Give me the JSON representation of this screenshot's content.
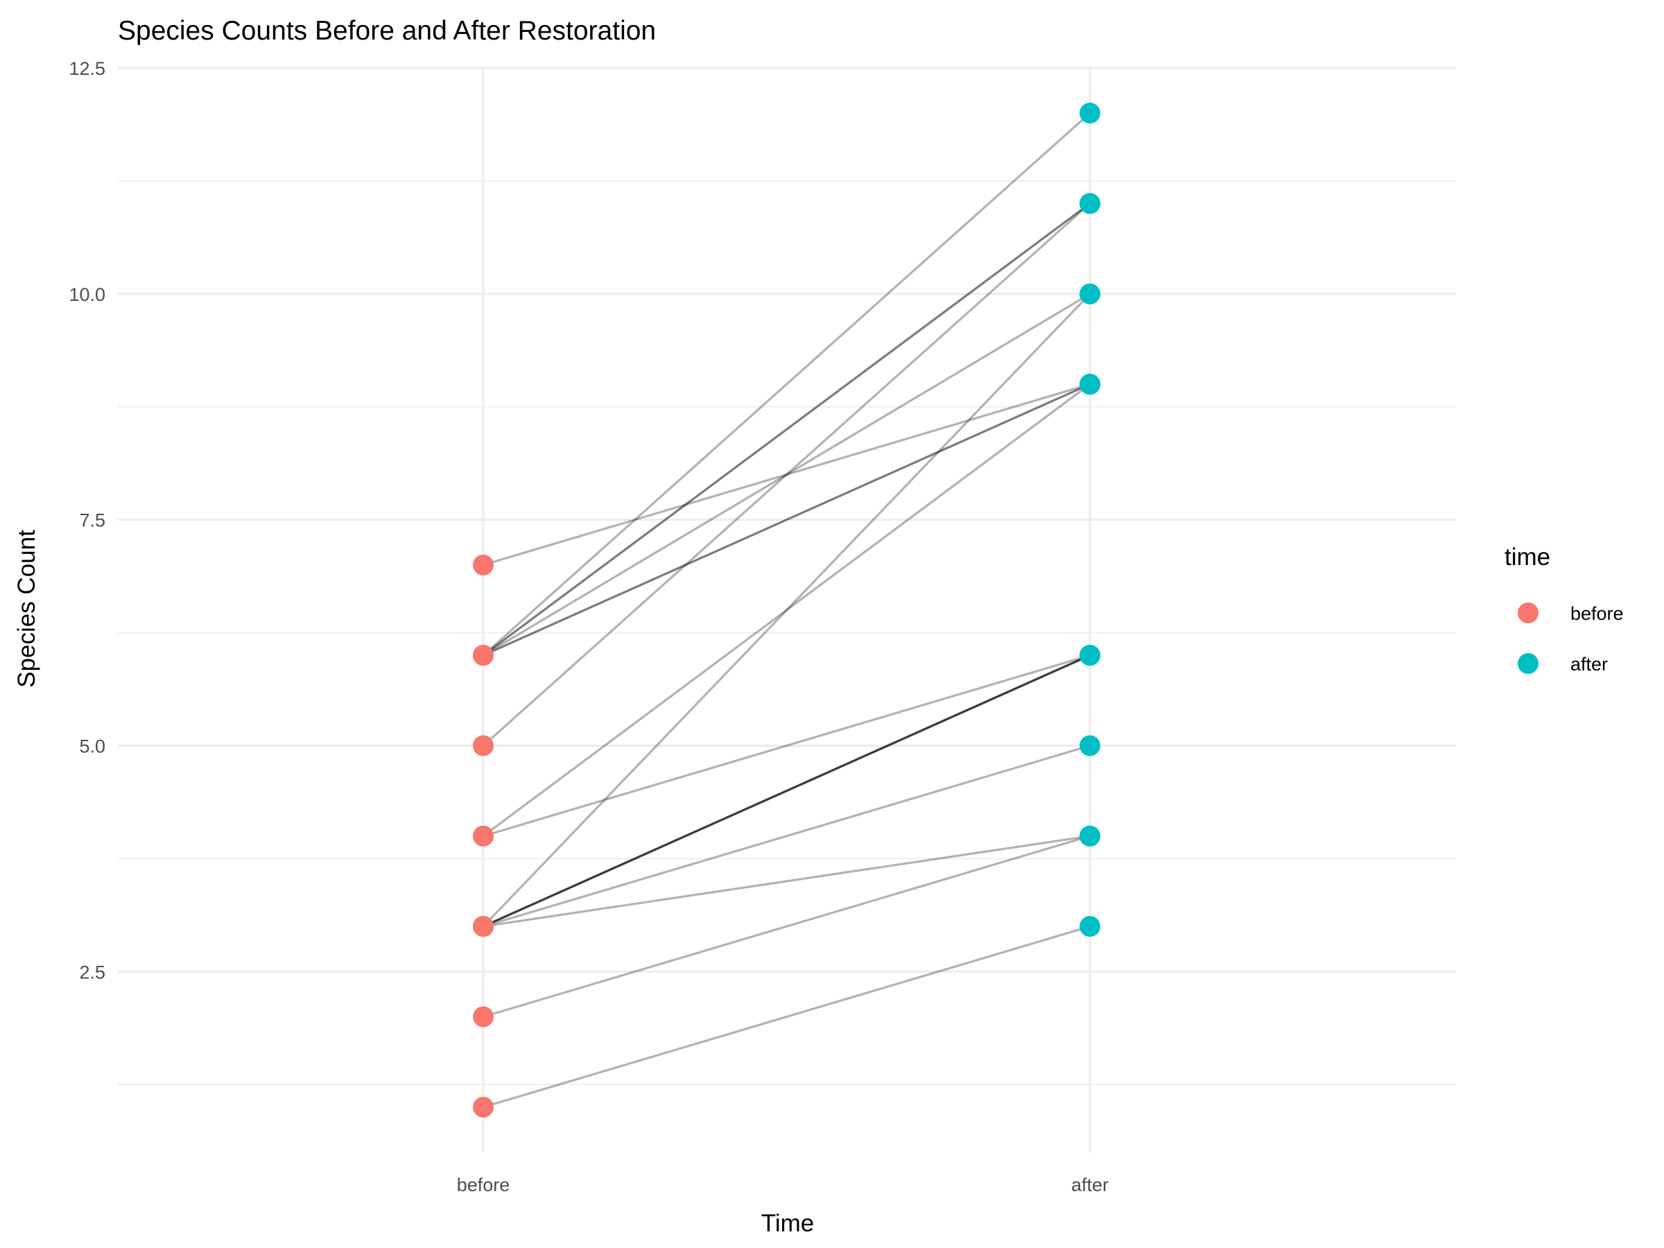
{
  "chart_data": {
    "type": "line",
    "title": "Species Counts Before and After Restoration",
    "xlabel": "Time",
    "ylabel": "Species Count",
    "categories": [
      "before",
      "after"
    ],
    "yticks": [
      "2.5",
      "5.0",
      "7.5",
      "10.0",
      "12.5"
    ],
    "ylim": [
      0.5,
      12.5
    ],
    "grid": true,
    "legend": {
      "title": "time",
      "placement": "right",
      "items": [
        {
          "label": "before",
          "color": "#F8766D"
        },
        {
          "label": "after",
          "color": "#00BFC4"
        }
      ]
    },
    "series": [
      {
        "before": 7,
        "after": 9
      },
      {
        "before": 6,
        "after": 11
      },
      {
        "before": 6,
        "after": 11
      },
      {
        "before": 6,
        "after": 10
      },
      {
        "before": 6,
        "after": 9
      },
      {
        "before": 6,
        "after": 9
      },
      {
        "before": 5,
        "after": 11
      },
      {
        "before": 4,
        "after": 9
      },
      {
        "before": 4,
        "after": 6
      },
      {
        "before": 3,
        "after": 10
      },
      {
        "before": 3,
        "after": 6
      },
      {
        "before": 3,
        "after": 6
      },
      {
        "before": 3,
        "after": 6
      },
      {
        "before": 3,
        "after": 6
      },
      {
        "before": 3,
        "after": 5
      },
      {
        "before": 3,
        "after": 4
      },
      {
        "before": 2,
        "after": 4
      },
      {
        "before": 1,
        "after": 3
      },
      {
        "before": 6,
        "after": 12
      }
    ],
    "colors": {
      "before": "#F8766D",
      "after": "#00BFC4",
      "line": "#000000"
    }
  }
}
